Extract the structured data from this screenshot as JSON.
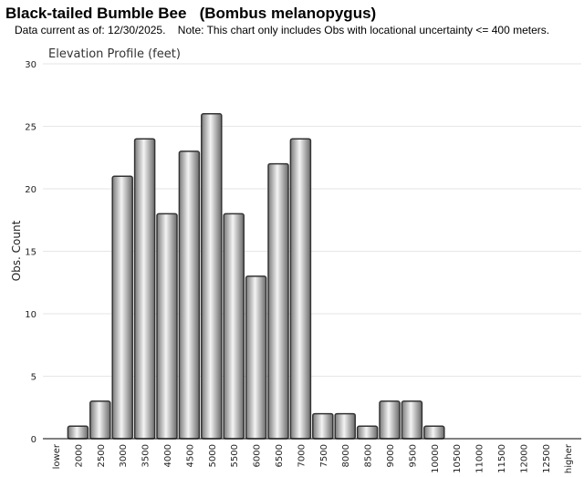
{
  "header": {
    "title": "Black-tailed Bumble Bee   (Bombus melanopygus)",
    "note": "Data current as of: 12/30/2025.    Note: This chart only includes Obs with locational uncertainty <= 400 meters."
  },
  "chart_data": {
    "type": "bar",
    "title": "Elevation Profile (feet)",
    "xlabel": "",
    "ylabel": "Obs. Count",
    "ylim": [
      0,
      30
    ],
    "yticks": [
      0,
      5,
      10,
      15,
      20,
      25,
      30
    ],
    "grid": true,
    "categories": [
      "lower",
      "2000",
      "2500",
      "3000",
      "3500",
      "4000",
      "4500",
      "5000",
      "5500",
      "6000",
      "6500",
      "7000",
      "7500",
      "8000",
      "8500",
      "9000",
      "9500",
      "10000",
      "10500",
      "11000",
      "11500",
      "12000",
      "12500",
      "higher"
    ],
    "values": [
      0,
      1,
      3,
      21,
      24,
      18,
      23,
      26,
      18,
      13,
      22,
      24,
      2,
      2,
      1,
      3,
      3,
      1,
      0,
      0,
      0,
      0,
      0,
      0
    ],
    "colors": {
      "bar_dark": "#6a6a6a",
      "bar_light": "#f2f2f2",
      "bar_stroke": "#333333",
      "grid": "#e6e6e6",
      "axis": "#000000"
    }
  }
}
